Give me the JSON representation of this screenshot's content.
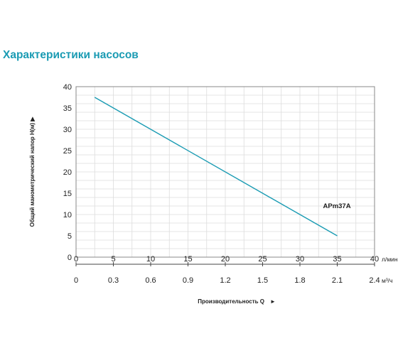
{
  "page_title": "Характеристики насосов",
  "chart_data": {
    "type": "line",
    "ylabel": "Общий манометрический напор H(м) ▶",
    "xlabel": "Производительность Q",
    "xlabel_arrow": "►",
    "ylim": [
      0,
      40
    ],
    "y_ticks": [
      "0",
      "5",
      "10",
      "15",
      "20",
      "25",
      "30",
      "35",
      "40"
    ],
    "x_axis_primary": {
      "unit": "л/мин",
      "range": [
        0,
        40
      ],
      "ticks": [
        "0",
        "5",
        "10",
        "15",
        "20",
        "25",
        "30",
        "35",
        "40"
      ]
    },
    "x_axis_secondary": {
      "unit": "м³/ч",
      "range": [
        0,
        2.4
      ],
      "ticks": [
        "0",
        "0.3",
        "0.6",
        "0.9",
        "1.2",
        "1.5",
        "1.8",
        "2.1",
        "2.4"
      ]
    },
    "grid": true,
    "series": [
      {
        "name": "APm37A",
        "color": "#1a9bb3",
        "x": [
          2.5,
          35
        ],
        "y": [
          37.5,
          5
        ]
      }
    ]
  }
}
